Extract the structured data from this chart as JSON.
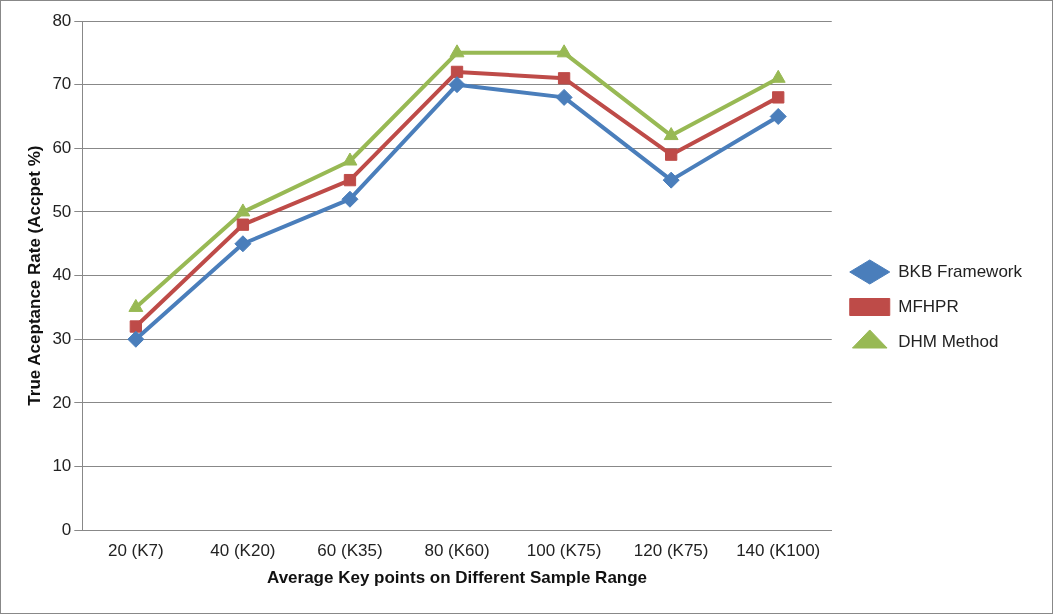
{
  "chart_data": {
    "type": "line",
    "xlabel": "Average Key points on Different Sample Range",
    "ylabel": "True Aceptance Rate (Accpet %)",
    "categories": [
      "20 (K7)",
      "40 (K20)",
      "60 (K35)",
      "80 (K60)",
      "100 (K75)",
      "120 (K75)",
      "140 (K100)"
    ],
    "series": [
      {
        "name": "BKB Framework",
        "color": "#4a7ebb",
        "marker": "diamond",
        "values": [
          30,
          45,
          52,
          70,
          68,
          55,
          65
        ]
      },
      {
        "name": "MFHPR",
        "color": "#be4b48",
        "marker": "square",
        "values": [
          32,
          48,
          55,
          72,
          71,
          59,
          68
        ]
      },
      {
        "name": "DHM Method",
        "color": "#98b954",
        "marker": "triangle",
        "values": [
          35,
          50,
          58,
          75,
          75,
          62,
          71
        ]
      }
    ],
    "ylim": [
      0,
      80
    ],
    "yticks": [
      0,
      10,
      20,
      30,
      40,
      50,
      60,
      70,
      80
    ],
    "grid": "y",
    "legend": "right"
  }
}
